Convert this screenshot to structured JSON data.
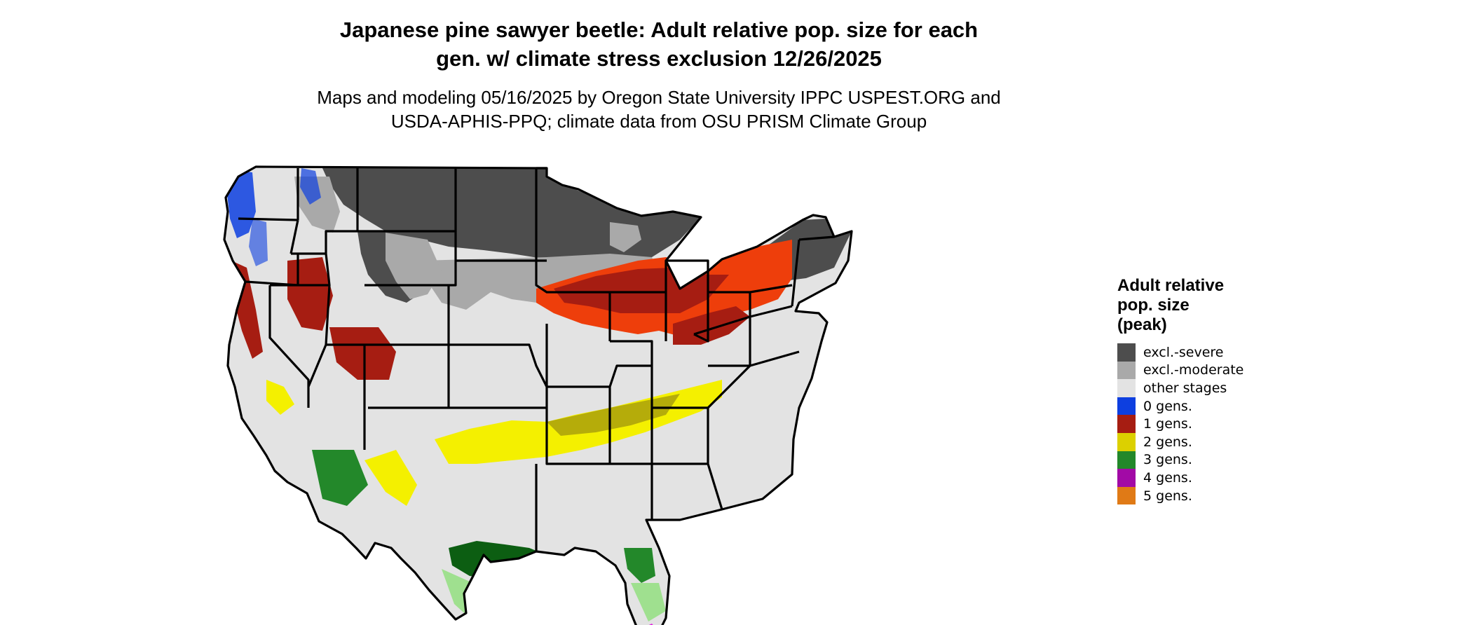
{
  "title": {
    "line1": "Japanese pine sawyer beetle: Adult relative pop. size for each",
    "line2": "gen. w/ climate stress exclusion 12/26/2025"
  },
  "subtitle": {
    "line1": "Maps and modeling 05/16/2025 by Oregon State University IPPC USPEST.ORG and",
    "line2": "USDA-APHIS-PPQ; climate data from OSU PRISM Climate Group"
  },
  "legend": {
    "title_line1": "Adult relative",
    "title_line2": "pop. size",
    "title_line3": "(peak)",
    "items": [
      {
        "label": "excl.-severe",
        "color": "#4d4d4d"
      },
      {
        "label": "excl.-moderate",
        "color": "#a9a9a9"
      },
      {
        "label": "other stages",
        "color": "#e3e3e3"
      },
      {
        "label": "0 gens.",
        "color": "#0d3fe0"
      },
      {
        "label": "1 gens.",
        "color": "#a61d12"
      },
      {
        "label": "2 gens.",
        "color": "#dcd000"
      },
      {
        "label": "3 gens.",
        "color": "#23882a"
      },
      {
        "label": "4 gens.",
        "color": "#a20aa6"
      },
      {
        "label": "5 gens.",
        "color": "#e07a16"
      }
    ]
  },
  "map_colors": {
    "severe": "#4d4d4d",
    "moderate": "#a9a9a9",
    "other": "#e3e3e3",
    "blue": "#0d3fe0",
    "darkred": "#a61d12",
    "redorange": "#ee3e0b",
    "yellow": "#f4f000",
    "olive": "#a59b0c",
    "green": "#23882a",
    "darkgreen": "#0c5e12",
    "lightgreen": "#9fe08f",
    "magenta": "#e020e0",
    "border": "#000000"
  }
}
